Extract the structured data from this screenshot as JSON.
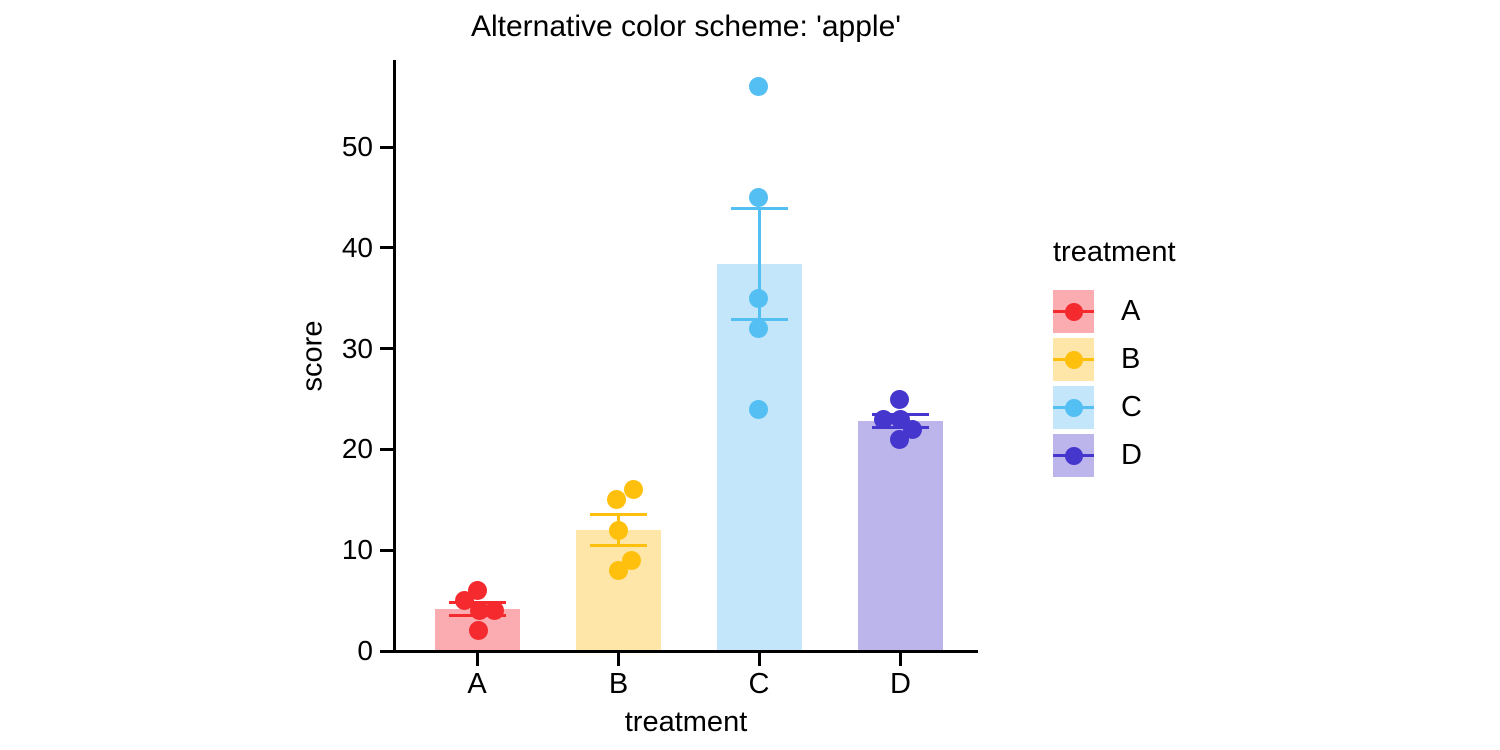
{
  "chart_data": {
    "type": "bar",
    "title": "Alternative color scheme: 'apple'",
    "xlabel": "treatment",
    "ylabel": "score",
    "ylim": [
      0,
      58.5
    ],
    "yticks": [
      0,
      10,
      20,
      30,
      40,
      50
    ],
    "grid": false,
    "error_bars": "mean ± se",
    "legend": {
      "title": "treatment",
      "position": "right"
    },
    "categories": [
      "A",
      "B",
      "C",
      "D"
    ],
    "series": [
      {
        "name": "A",
        "point_color": "#F42A2E",
        "bar_fill": "#FAACB1",
        "mean": 4.2,
        "se": 0.66,
        "points": [
          {
            "value": 6,
            "dx": 0
          },
          {
            "value": 5,
            "dx": -13
          },
          {
            "value": 4,
            "dx": 2
          },
          {
            "value": 4,
            "dx": 17
          },
          {
            "value": 2,
            "dx": 1
          }
        ]
      },
      {
        "name": "B",
        "point_color": "#FFC00D",
        "bar_fill": "#FDE6A7",
        "mean": 12.0,
        "se": 1.58,
        "points": [
          {
            "value": 16,
            "dx": 14.5
          },
          {
            "value": 15,
            "dx": -2.5
          },
          {
            "value": 12,
            "dx": -0.5
          },
          {
            "value": 9,
            "dx": 12.5
          },
          {
            "value": 8,
            "dx": -0.5
          }
        ]
      },
      {
        "name": "C",
        "point_color": "#53BFF2",
        "bar_fill": "#C4E6FA",
        "mean": 38.4,
        "se": 5.54,
        "points": [
          {
            "value": 56,
            "dx": -1
          },
          {
            "value": 45,
            "dx": -1
          },
          {
            "value": 35,
            "dx": -1
          },
          {
            "value": 32,
            "dx": -1
          },
          {
            "value": 24,
            "dx": -1
          }
        ]
      },
      {
        "name": "D",
        "point_color": "#4536CE",
        "bar_fill": "#BCB5EB",
        "mean": 22.8,
        "se": 0.66,
        "points": [
          {
            "value": 25,
            "dx": -1.5
          },
          {
            "value": 23,
            "dx": -17.5
          },
          {
            "value": 23,
            "dx": -0.5
          },
          {
            "value": 22,
            "dx": 11.5
          },
          {
            "value": 21,
            "dx": -1.5
          }
        ]
      }
    ]
  }
}
